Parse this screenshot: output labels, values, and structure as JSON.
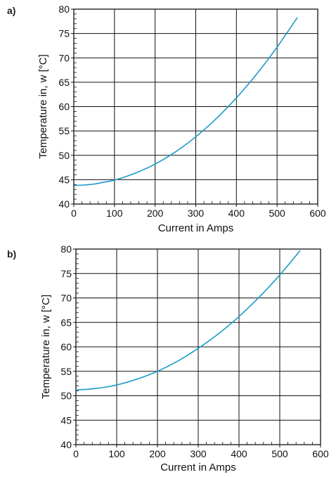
{
  "chart_data": [
    {
      "panel": "a)",
      "type": "line",
      "xlabel": "Current in Amps",
      "ylabel": "Temperature in, w [°C]",
      "xlim": [
        0,
        600
      ],
      "ylim": [
        40,
        80
      ],
      "xticks": [
        "0",
        "100",
        "200",
        "300",
        "400",
        "500",
        "600"
      ],
      "yticks": [
        "40",
        "45",
        "50",
        "55",
        "60",
        "65",
        "70",
        "75",
        "80"
      ],
      "grid": true,
      "line_color": "#1a9bc9",
      "series": [
        {
          "x": [
            0,
            25,
            50,
            75,
            100,
            150,
            200,
            250,
            300,
            350,
            400,
            450,
            500,
            550
          ],
          "y": [
            43.8,
            43.9,
            44.1,
            44.5,
            44.9,
            46.3,
            48.2,
            50.7,
            53.8,
            57.5,
            61.8,
            66.7,
            72.2,
            78.3
          ]
        }
      ]
    },
    {
      "panel": "b)",
      "type": "line",
      "xlabel": "Current in Amps",
      "ylabel": "Temperature in, w [°C]",
      "xlim": [
        0,
        600
      ],
      "ylim": [
        40,
        80
      ],
      "xticks": [
        "0",
        "100",
        "200",
        "300",
        "400",
        "500",
        "600"
      ],
      "yticks": [
        "40",
        "45",
        "50",
        "55",
        "60",
        "65",
        "70",
        "75",
        "80"
      ],
      "grid": true,
      "line_color": "#1a9bc9",
      "series": [
        {
          "x": [
            0,
            25,
            50,
            75,
            100,
            150,
            200,
            250,
            300,
            350,
            400,
            450,
            500,
            550
          ],
          "y": [
            51.2,
            51.3,
            51.5,
            51.8,
            52.2,
            53.4,
            55.0,
            57.1,
            59.7,
            62.7,
            66.2,
            70.2,
            74.7,
            79.7
          ]
        }
      ]
    }
  ]
}
